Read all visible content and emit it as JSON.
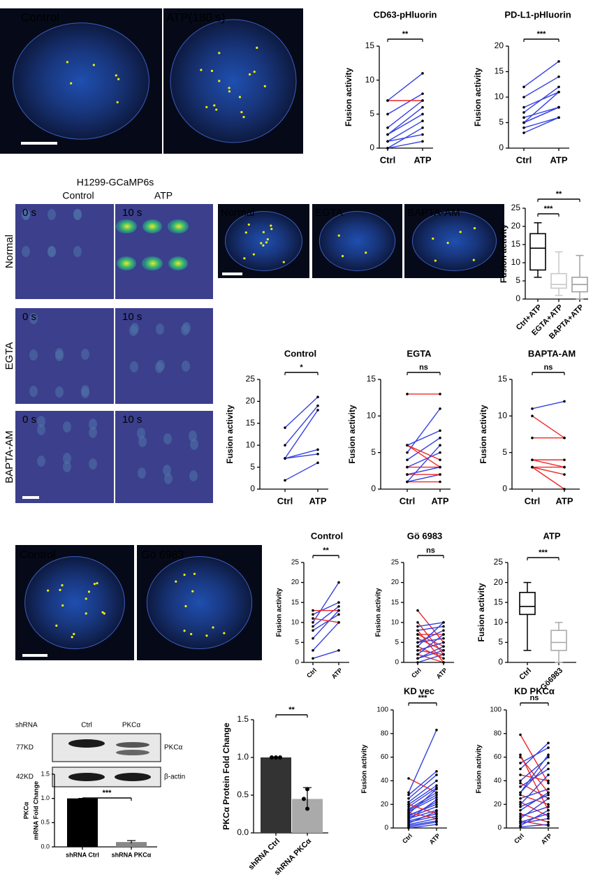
{
  "figure": {
    "top_images": [
      "Control",
      "ATP(180 s)"
    ],
    "gcamp": {
      "title": "H1299-GCaMP6s",
      "columns": [
        "Control",
        "ATP"
      ],
      "rows": [
        "Normal",
        "EGTA",
        "BAPTA-AM"
      ],
      "times": [
        "0 s",
        "10 s"
      ]
    },
    "calcium_images": [
      "Normal",
      "EGTA",
      "BAPTA-AM"
    ],
    "pkc_images": [
      "Control",
      "Gö 6983"
    ],
    "blot": {
      "header": "shRNA",
      "lanes": [
        "Ctrl",
        "PKCα"
      ],
      "sizes": [
        "77KD",
        "42KD"
      ],
      "proteins": [
        "PKCα",
        "β-actin"
      ]
    }
  },
  "chart_data": [
    {
      "type": "paired",
      "title": "CD63-pHluorin",
      "ylabel": "Fusion activity",
      "categories": [
        "Ctrl",
        "ATP"
      ],
      "ylim": [
        0,
        15
      ],
      "yticks": [
        0,
        5,
        10,
        15
      ],
      "annotations": [
        "**"
      ],
      "colors": {
        "increase": "#3340e0",
        "no_increase": "#f02828"
      },
      "pairs": [
        [
          0,
          1
        ],
        [
          0,
          3
        ],
        [
          1,
          2
        ],
        [
          1,
          4
        ],
        [
          2,
          5
        ],
        [
          2,
          6
        ],
        [
          3,
          7
        ],
        [
          5,
          8
        ],
        [
          7,
          7
        ],
        [
          7,
          11
        ]
      ]
    },
    {
      "type": "paired",
      "title": "PD-L1-pHluorin",
      "ylabel": "Fusion activity",
      "categories": [
        "Ctrl",
        "ATP"
      ],
      "ylim": [
        0,
        20
      ],
      "yticks": [
        0,
        5,
        10,
        15,
        20
      ],
      "annotations": [
        "***"
      ],
      "colors": {
        "increase": "#3340e0",
        "no_increase": "#f02828"
      },
      "pairs": [
        [
          3,
          6
        ],
        [
          4,
          6
        ],
        [
          5,
          8
        ],
        [
          5,
          11
        ],
        [
          6,
          8
        ],
        [
          7,
          12
        ],
        [
          8,
          11
        ],
        [
          10,
          14
        ],
        [
          12,
          17
        ],
        [
          5,
          8
        ]
      ]
    },
    {
      "type": "box",
      "ylabel": "Fusion activity",
      "categories": [
        "Ctrl+ATP",
        "EGTA+ATP",
        "BAPTA+ATP"
      ],
      "ylim": [
        0,
        25
      ],
      "yticks": [
        0,
        5,
        10,
        15,
        20,
        25
      ],
      "annotations": [
        "***",
        "**"
      ],
      "colors": [
        "#000000",
        "#c8c8c8",
        "#a0a0a0"
      ],
      "boxes": [
        {
          "min": 6,
          "q1": 8,
          "median": 14,
          "q3": 18,
          "max": 21
        },
        {
          "min": 1,
          "q1": 3,
          "median": 4,
          "q3": 7,
          "max": 13
        },
        {
          "min": 0,
          "q1": 2,
          "median": 4,
          "q3": 6,
          "max": 12
        }
      ]
    },
    {
      "type": "paired",
      "title": "Control",
      "ylabel": "Fusion activity",
      "categories": [
        "Ctrl",
        "ATP"
      ],
      "ylim": [
        0,
        25
      ],
      "yticks": [
        0,
        5,
        10,
        15,
        20,
        25
      ],
      "annotations": [
        "*"
      ],
      "colors": {
        "increase": "#3340e0",
        "no_increase": "#f02828"
      },
      "pairs": [
        [
          2,
          6
        ],
        [
          7,
          8
        ],
        [
          7,
          9
        ],
        [
          10,
          19
        ],
        [
          14,
          21
        ],
        [
          7,
          18
        ]
      ]
    },
    {
      "type": "paired",
      "title": "EGTA",
      "ylabel": "Fusion activity",
      "categories": [
        "Ctrl",
        "ATP"
      ],
      "ylim": [
        0,
        15
      ],
      "yticks": [
        0,
        5,
        10,
        15
      ],
      "annotations": [
        "ns"
      ],
      "colors": {
        "increase": "#3340e0",
        "no_increase": "#f02828"
      },
      "pairs": [
        [
          1,
          1
        ],
        [
          1,
          2
        ],
        [
          2,
          2
        ],
        [
          3,
          5
        ],
        [
          3,
          3
        ],
        [
          4,
          7
        ],
        [
          5,
          11
        ],
        [
          6,
          8
        ],
        [
          6,
          3
        ],
        [
          6,
          4
        ],
        [
          13,
          13
        ],
        [
          2,
          3
        ],
        [
          1,
          6
        ]
      ]
    },
    {
      "type": "paired",
      "title": "BAPTA-AM",
      "ylabel": "Fusion activity",
      "categories": [
        "Ctrl",
        "ATP"
      ],
      "ylim": [
        0,
        15
      ],
      "yticks": [
        0,
        5,
        10,
        15
      ],
      "annotations": [
        "ns"
      ],
      "colors": {
        "increase": "#3340e0",
        "no_increase": "#f02828"
      },
      "pairs": [
        [
          11,
          12
        ],
        [
          10,
          7
        ],
        [
          7,
          7
        ],
        [
          4,
          4
        ],
        [
          3,
          3
        ],
        [
          3,
          2
        ],
        [
          3,
          0
        ],
        [
          4,
          3
        ]
      ]
    },
    {
      "type": "paired",
      "title": "Control",
      "ylabel": "Fusion activity",
      "categories": [
        "Ctrl",
        "ATP"
      ],
      "ylim": [
        0,
        25
      ],
      "yticks": [
        0,
        5,
        10,
        15,
        20,
        25
      ],
      "annotations": [
        "**"
      ],
      "colors": {
        "increase": "#3340e0",
        "no_increase": "#f02828"
      },
      "pairs": [
        [
          1,
          3
        ],
        [
          3,
          10
        ],
        [
          6,
          13
        ],
        [
          8,
          12
        ],
        [
          9,
          14
        ],
        [
          10,
          20
        ],
        [
          12,
          15
        ],
        [
          13,
          13
        ],
        [
          11,
          10
        ]
      ]
    },
    {
      "type": "paired",
      "title": "Gö 6983",
      "ylabel": "Fusion activity",
      "categories": [
        "Ctrl",
        "ATP"
      ],
      "ylim": [
        0,
        25
      ],
      "yticks": [
        0,
        5,
        10,
        15,
        20,
        25
      ],
      "annotations": [
        "ns"
      ],
      "colors": {
        "increase": "#3340e0",
        "no_increase": "#f02828"
      },
      "pairs": [
        [
          13,
          5
        ],
        [
          10,
          2
        ],
        [
          9,
          10
        ],
        [
          8,
          9
        ],
        [
          7,
          4
        ],
        [
          7,
          7
        ],
        [
          6,
          3
        ],
        [
          5,
          8
        ],
        [
          5,
          6
        ],
        [
          4,
          10
        ],
        [
          4,
          1
        ],
        [
          3,
          5
        ],
        [
          3,
          2
        ],
        [
          2,
          7
        ],
        [
          2,
          0
        ],
        [
          1,
          4
        ],
        [
          1,
          3
        ],
        [
          0,
          2
        ],
        [
          8,
          0
        ]
      ]
    },
    {
      "type": "box",
      "title": "ATP",
      "ylabel": "Fusion activity",
      "categories": [
        "Ctrl",
        "Gö6983"
      ],
      "ylim": [
        0,
        25
      ],
      "yticks": [
        0,
        5,
        10,
        15,
        20,
        25
      ],
      "annotations": [
        "***"
      ],
      "colors": [
        "#000000",
        "#aaaaaa"
      ],
      "boxes": [
        {
          "min": 3,
          "q1": 12,
          "median": 14,
          "q3": 17.5,
          "max": 20
        },
        {
          "min": 0,
          "q1": 3,
          "median": 5,
          "q3": 8,
          "max": 10
        }
      ]
    },
    {
      "type": "bar",
      "ylabel": [
        "PKCα",
        "mRNA Fold Change"
      ],
      "categories": [
        "shRNA Ctrl",
        "shRNA PKCα"
      ],
      "ylim": [
        0,
        1.5
      ],
      "yticks": [
        {
          "value": 0,
          "label": "0.0"
        },
        {
          "value": 0.5,
          "label": "0.5"
        },
        {
          "value": 1,
          "label": "1.0"
        },
        {
          "value": 1.5,
          "label": "1.5"
        }
      ],
      "annotations": [
        "***"
      ],
      "colors": [
        "#000000",
        "#888888"
      ],
      "values": [
        1.0,
        0.1
      ],
      "errors": [
        0,
        0.03
      ]
    },
    {
      "type": "bar",
      "ylabel": "PKCα Protein Fold Change",
      "categories": [
        "shRNA Ctrl",
        "shRNA PKCα"
      ],
      "ylim": [
        0,
        1.5
      ],
      "yticks": [
        {
          "value": 0,
          "label": "0.0"
        },
        {
          "value": 0.5,
          "label": "0.5"
        },
        {
          "value": 1,
          "label": "1.0"
        },
        {
          "value": 1.5,
          "label": "1.5"
        }
      ],
      "annotations": [
        "**"
      ],
      "colors": [
        "#333333",
        "#aaaaaa"
      ],
      "values": [
        1.0,
        0.45
      ],
      "errors": [
        0,
        0.15
      ],
      "points": [
        [
          1.0,
          1.0,
          1.0
        ],
        [
          0.58,
          0.45,
          0.32
        ]
      ]
    },
    {
      "type": "paired",
      "title": "KD vec",
      "ylabel": "Fusion activity",
      "categories": [
        "Ctrl",
        "ATP"
      ],
      "ylim": [
        0,
        100
      ],
      "yticks": [
        0,
        20,
        40,
        60,
        80,
        100
      ],
      "annotations": [
        "***"
      ],
      "colors": {
        "increase": "#3340e0",
        "no_increase": "#f02828"
      },
      "pairs": [
        [
          42,
          30
        ],
        [
          30,
          83
        ],
        [
          28,
          48
        ],
        [
          25,
          45
        ],
        [
          22,
          40
        ],
        [
          20,
          36
        ],
        [
          18,
          34
        ],
        [
          16,
          30
        ],
        [
          15,
          28
        ],
        [
          14,
          26
        ],
        [
          12,
          33
        ],
        [
          11,
          20
        ],
        [
          10,
          22
        ],
        [
          9,
          18
        ],
        [
          8,
          15
        ],
        [
          7,
          24
        ],
        [
          6,
          12
        ],
        [
          5,
          10
        ],
        [
          4,
          14
        ],
        [
          3,
          8
        ],
        [
          2,
          6
        ],
        [
          1,
          5
        ],
        [
          20,
          12
        ],
        [
          13,
          8
        ],
        [
          0,
          3
        ]
      ]
    },
    {
      "type": "paired",
      "title": "KD PKCα",
      "ylabel": "Fusion activity",
      "categories": [
        "Ctrl",
        "ATP"
      ],
      "ylim": [
        0,
        100
      ],
      "yticks": [
        0,
        20,
        40,
        60,
        80,
        100
      ],
      "annotations": [
        "ns"
      ],
      "colors": {
        "increase": "#3340e0",
        "no_increase": "#f02828"
      },
      "pairs": [
        [
          79,
          38
        ],
        [
          60,
          30
        ],
        [
          62,
          15
        ],
        [
          55,
          68
        ],
        [
          50,
          72
        ],
        [
          45,
          40
        ],
        [
          40,
          60
        ],
        [
          38,
          25
        ],
        [
          35,
          50
        ],
        [
          30,
          55
        ],
        [
          28,
          20
        ],
        [
          25,
          33
        ],
        [
          22,
          10
        ],
        [
          20,
          45
        ],
        [
          18,
          28
        ],
        [
          15,
          30
        ],
        [
          12,
          5
        ],
        [
          10,
          18
        ],
        [
          8,
          25
        ],
        [
          6,
          2
        ],
        [
          5,
          12
        ],
        [
          4,
          8
        ],
        [
          2,
          15
        ],
        [
          1,
          3
        ],
        [
          30,
          62
        ]
      ]
    }
  ]
}
